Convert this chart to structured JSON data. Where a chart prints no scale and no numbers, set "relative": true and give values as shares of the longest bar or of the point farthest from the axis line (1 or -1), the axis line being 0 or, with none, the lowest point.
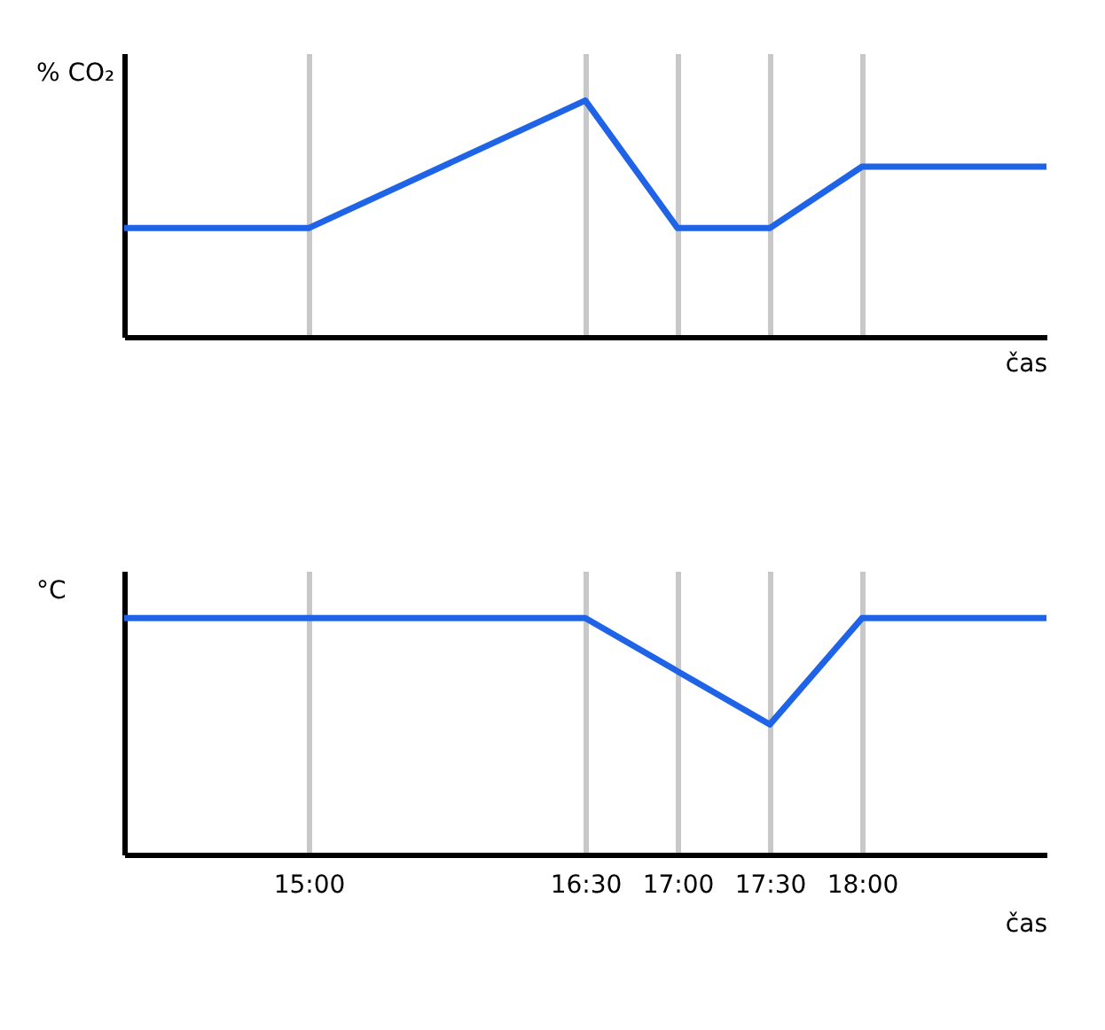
{
  "chart_data": [
    {
      "type": "line",
      "ylabel": "% CO₂",
      "xlabel": "čas",
      "relative": true,
      "color": "#1f64e6",
      "grid": "x",
      "tick_labels": false,
      "x": [
        14,
        15,
        16.5,
        17,
        17.5,
        18,
        19
      ],
      "values": [
        0.46,
        0.46,
        1,
        0.46,
        0.46,
        0.72,
        0.72
      ],
      "xlim": [
        14,
        19
      ],
      "xticks": [
        {
          "value": 15,
          "label": null
        },
        {
          "value": 16.5,
          "label": null
        },
        {
          "value": 17,
          "label": null
        },
        {
          "value": 17.5,
          "label": null
        },
        {
          "value": 18,
          "label": null
        }
      ]
    },
    {
      "type": "line",
      "ylabel": "°C",
      "xlabel": "čas",
      "relative": true,
      "color": "#1f64e6",
      "grid": "x",
      "tick_labels": "x",
      "x": [
        14,
        16.5,
        17.5,
        18,
        19
      ],
      "values": [
        1,
        1,
        0.55,
        1,
        1
      ],
      "xlim": [
        14,
        19
      ],
      "xticks": [
        {
          "value": 15,
          "label": "15:00"
        },
        {
          "value": 16.5,
          "label": "16:30"
        },
        {
          "value": 17,
          "label": "17:00"
        },
        {
          "value": 17.5,
          "label": "17:30"
        },
        {
          "value": 18,
          "label": "18:00"
        }
      ]
    }
  ]
}
